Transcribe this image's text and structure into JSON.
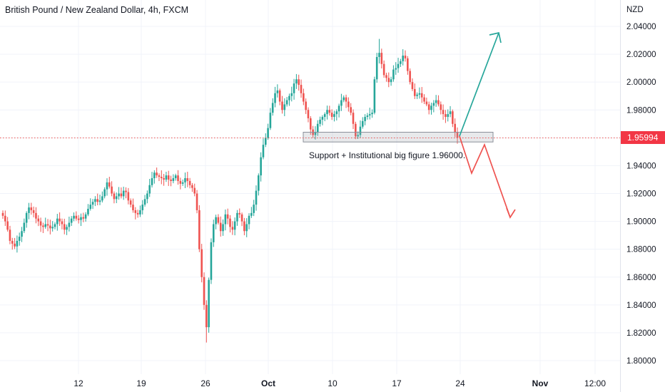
{
  "header": {
    "title": "British Pound / New Zealand Dollar, 4h, FXCM",
    "currency": "NZD"
  },
  "price_tag": "1.95994",
  "annotation": "Support + Institutional big figure 1.96000.",
  "colors": {
    "up": "#26a69a",
    "down": "#ef5350",
    "accent": "#f23645",
    "axis_text": "#131722"
  },
  "chart_data": {
    "type": "candlestick",
    "ylim": [
      1.79,
      2.05
    ],
    "y_ticks": [
      "2.04000",
      "2.02000",
      "2.00000",
      "1.98000",
      "1.96000",
      "1.94000",
      "1.92000",
      "1.90000",
      "1.88000",
      "1.86000",
      "1.84000",
      "1.82000",
      "1.80000"
    ],
    "x_ticks": [
      "12",
      "19",
      "26",
      "Oct",
      "10",
      "17",
      "24",
      "Nov",
      "12:00"
    ],
    "current_price": 1.95994,
    "support_zone": [
      1.957,
      1.964
    ],
    "closes": [
      1.904,
      1.9,
      1.894,
      1.886,
      1.884,
      1.882,
      1.886,
      1.889,
      1.893,
      1.899,
      1.906,
      1.91,
      1.908,
      1.906,
      1.902,
      1.9,
      1.897,
      1.896,
      1.898,
      1.897,
      1.895,
      1.896,
      1.898,
      1.902,
      1.9,
      1.898,
      1.894,
      1.896,
      1.899,
      1.902,
      1.904,
      1.902,
      1.901,
      1.903,
      1.902,
      1.905,
      1.909,
      1.912,
      1.914,
      1.916,
      1.914,
      1.915,
      1.918,
      1.923,
      1.928,
      1.925,
      1.92,
      1.916,
      1.918,
      1.92,
      1.918,
      1.922,
      1.921,
      1.915,
      1.912,
      1.908,
      1.906,
      1.905,
      1.908,
      1.912,
      1.916,
      1.92,
      1.926,
      1.931,
      1.935,
      1.933,
      1.932,
      1.931,
      1.93,
      1.933,
      1.93,
      1.929,
      1.931,
      1.933,
      1.929,
      1.927,
      1.928,
      1.931,
      1.929,
      1.926,
      1.924,
      1.92,
      1.908,
      1.88,
      1.86,
      1.84,
      1.824,
      1.858,
      1.885,
      1.898,
      1.903,
      1.899,
      1.893,
      1.898,
      1.905,
      1.902,
      1.896,
      1.894,
      1.9,
      1.906,
      1.905,
      1.9,
      1.893,
      1.898,
      1.904,
      1.906,
      1.912,
      1.922,
      1.933,
      1.946,
      1.955,
      1.96,
      1.967,
      1.978,
      1.985,
      1.992,
      1.994,
      1.986,
      1.98,
      1.984,
      1.987,
      1.99,
      1.992,
      1.999,
      2.002,
      1.998,
      1.992,
      1.986,
      1.98,
      1.974,
      1.966,
      1.962,
      1.964,
      1.97,
      1.973,
      1.975,
      1.977,
      1.98,
      1.978,
      1.975,
      1.977,
      1.979,
      1.983,
      1.987,
      1.989,
      1.986,
      1.982,
      1.978,
      1.97,
      1.961,
      1.962,
      1.968,
      1.972,
      1.975,
      1.976,
      1.977,
      1.978,
      2.002,
      2.018,
      2.021,
      2.013,
      2.005,
      2.003,
      2.0,
      2.002,
      2.009,
      2.01,
      2.013,
      2.015,
      2.019,
      2.017,
      2.008,
      2.0,
      1.995,
      1.99,
      1.991,
      1.992,
      1.989,
      1.986,
      1.984,
      1.98,
      1.983,
      1.985,
      1.987,
      1.984,
      1.98,
      1.977,
      1.975,
      1.977,
      1.979,
      1.97,
      1.964,
      1.96
    ]
  }
}
